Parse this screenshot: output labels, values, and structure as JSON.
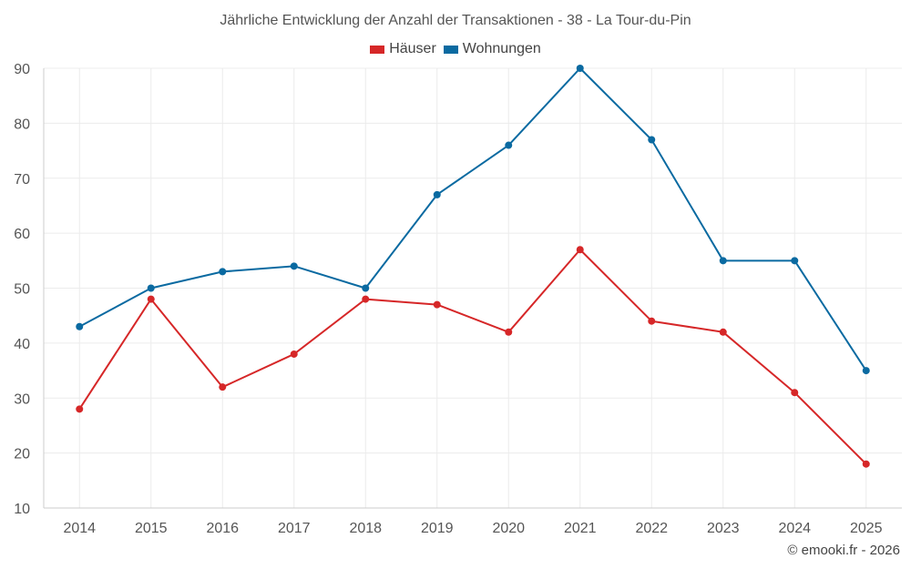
{
  "chart_data": {
    "type": "line",
    "title": "Jährliche Entwicklung der Anzahl der Transaktionen - 38 - La Tour-du-Pin",
    "categories": [
      "2014",
      "2015",
      "2016",
      "2017",
      "2018",
      "2019",
      "2020",
      "2021",
      "2022",
      "2023",
      "2024",
      "2025"
    ],
    "series": [
      {
        "name": "Häuser",
        "color": "#d62728",
        "values": [
          28,
          48,
          32,
          38,
          48,
          47,
          42,
          57,
          44,
          42,
          31,
          18
        ]
      },
      {
        "name": "Wohnungen",
        "color": "#0a6aa1",
        "values": [
          43,
          50,
          53,
          54,
          50,
          67,
          76,
          90,
          77,
          55,
          55,
          35
        ]
      }
    ],
    "ylim": [
      10,
      90
    ],
    "yticks": [
      10,
      20,
      30,
      40,
      50,
      60,
      70,
      80,
      90
    ],
    "xlabel": "",
    "ylabel": "",
    "grid": true,
    "legend": "top-center"
  },
  "credit": "© emooki.fr - 2026"
}
